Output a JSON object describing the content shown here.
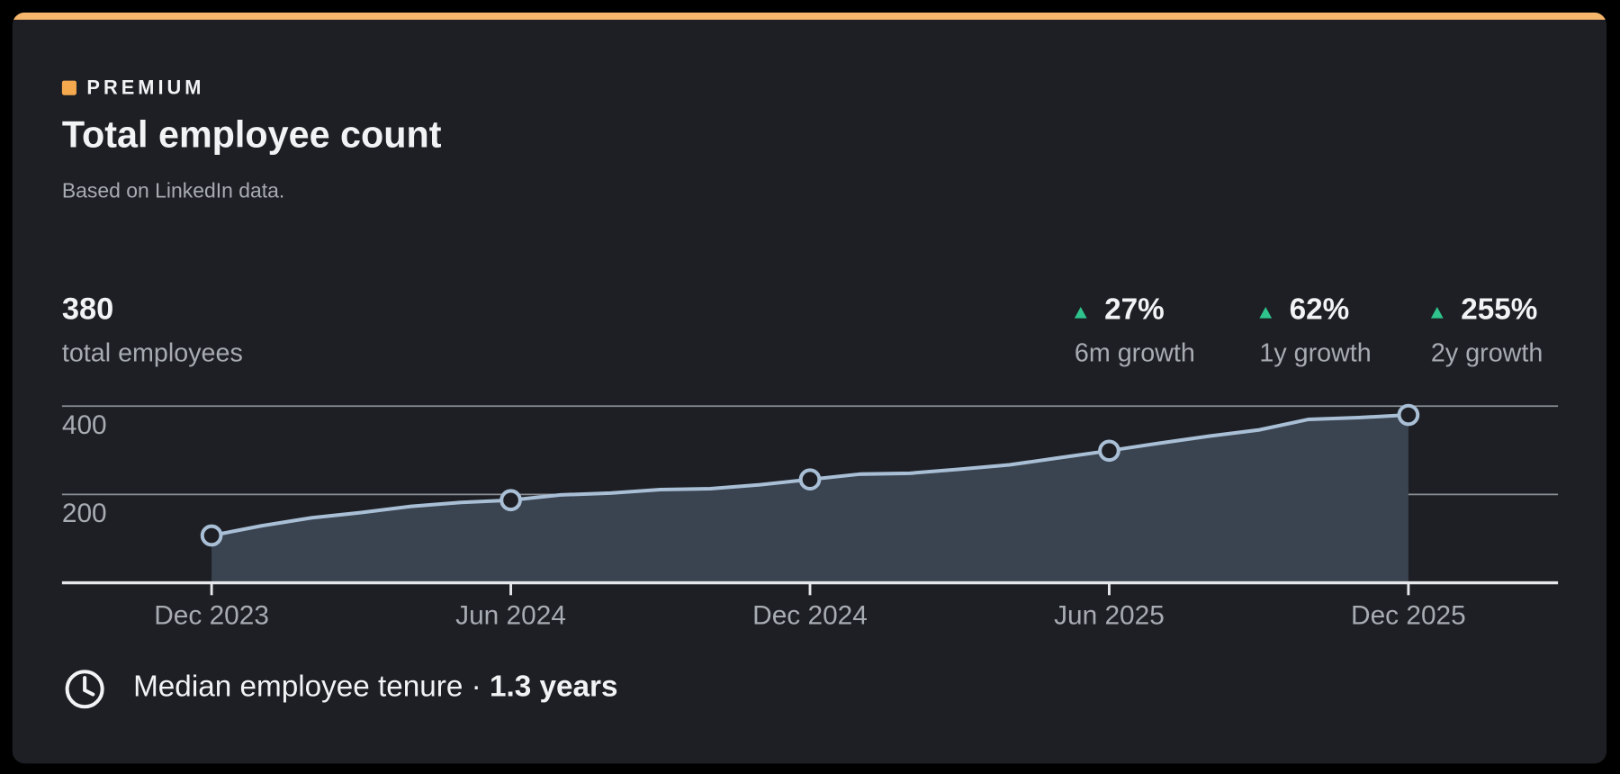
{
  "header": {
    "badge": "PREMIUM",
    "title": "Total employee count",
    "subtitle": "Based on LinkedIn data."
  },
  "summary": {
    "value": "380",
    "label": "total employees"
  },
  "growth": [
    {
      "value": "27%",
      "label": "6m growth"
    },
    {
      "value": "62%",
      "label": "1y growth"
    },
    {
      "value": "255%",
      "label": "2y growth"
    }
  ],
  "chart_data": {
    "type": "area",
    "categories": [
      "Dec 2023",
      null,
      null,
      null,
      null,
      null,
      "Jun 2024",
      null,
      null,
      null,
      null,
      null,
      "Dec 2024",
      null,
      null,
      null,
      null,
      null,
      "Jun 2025",
      null,
      null,
      null,
      null,
      null,
      "Dec 2025"
    ],
    "values": [
      107,
      129,
      147,
      159,
      173,
      182,
      187,
      199,
      203,
      211,
      213,
      222,
      234,
      246,
      248,
      257,
      267,
      283,
      299,
      316,
      332,
      346,
      370,
      374,
      380
    ],
    "color": "#a9bfd6",
    "fill": "#3a4350",
    "ylim": [
      0,
      400
    ],
    "yticks": [
      200,
      400
    ],
    "grid": true
  },
  "footer": {
    "label": "Median employee tenure ·",
    "value": "1.3 years"
  }
}
